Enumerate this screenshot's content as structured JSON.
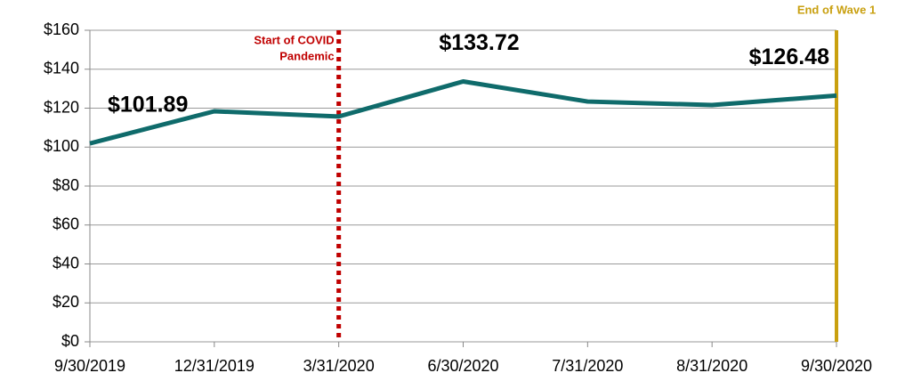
{
  "chart_data": {
    "type": "line",
    "categories": [
      "9/30/2019",
      "12/31/2019",
      "3/31/2020",
      "6/30/2020",
      "7/31/2020",
      "8/31/2020",
      "9/30/2020"
    ],
    "series": [
      {
        "color": "#0f6b6b",
        "values": [
          101.89,
          118.4,
          115.7,
          133.72,
          123.4,
          121.6,
          126.48
        ],
        "value_labels": [
          "$101.89",
          null,
          null,
          "$133.72",
          null,
          null,
          "$126.48"
        ]
      }
    ],
    "ylim": [
      0,
      160
    ],
    "yticks": [
      {
        "value": 0,
        "label": "$0"
      },
      {
        "value": 20,
        "label": "$20"
      },
      {
        "value": 40,
        "label": "$40"
      },
      {
        "value": 60,
        "label": "$60"
      },
      {
        "value": 80,
        "label": "$80"
      },
      {
        "value": 100,
        "label": "$100"
      },
      {
        "value": 120,
        "label": "$120"
      },
      {
        "value": 140,
        "label": "$140"
      },
      {
        "value": 160,
        "label": "$160"
      }
    ],
    "grid": true,
    "annotations": [
      {
        "lines": [
          "Start of COVID",
          "Pandemic"
        ],
        "at": "3/31/2020",
        "color": "#c00000",
        "style": "dotted"
      },
      {
        "lines": [
          "End of Wave 1"
        ],
        "at": "9/30/2020",
        "color": "#c9a010",
        "style": "solid"
      }
    ]
  }
}
